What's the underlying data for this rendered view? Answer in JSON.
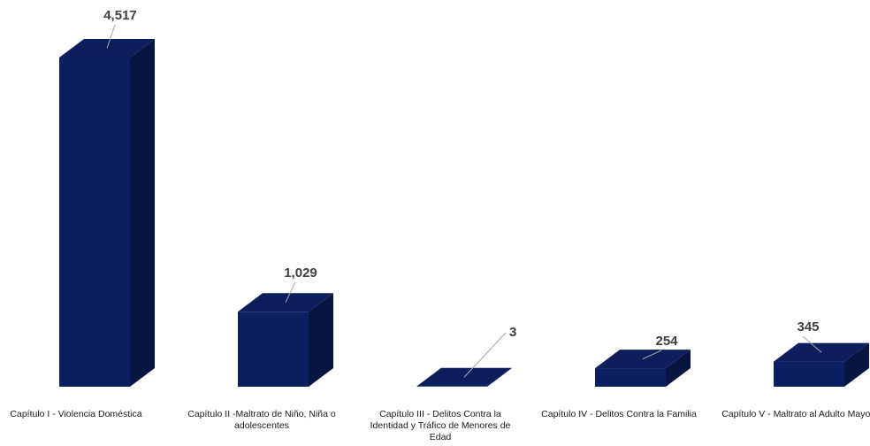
{
  "chart_data": {
    "type": "bar",
    "style": "3d-column",
    "categories": [
      "Capítulo I - Violencia Doméstica",
      "Capítulo II -Maltrato de Niño, Niña o adolescentes",
      "Capítulo III - Delitos Contra la Identidad y Tráfico de Menores de Edad",
      "Capítulo IV - Delitos Contra la Familia",
      "Capítulo V - Maltrato al Adulto Mayor"
    ],
    "series": [
      {
        "values": [
          4517,
          1029,
          3,
          254,
          345
        ]
      }
    ],
    "data_labels": [
      "4,517",
      "1,029",
      "3",
      "254",
      "345"
    ],
    "title": "",
    "xlabel": "",
    "ylabel": "",
    "ylim": [
      0,
      4517
    ],
    "grid": false,
    "legend": "none",
    "colors": {
      "front": "#0a2060",
      "top": "#0c1f5c",
      "side": "#061640",
      "label": "#404040"
    }
  }
}
